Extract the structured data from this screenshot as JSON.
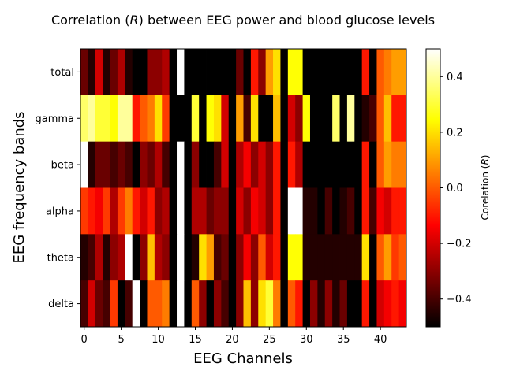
{
  "chart_data": {
    "type": "heatmap",
    "title": "Correlation ($R$) between EEG power and blood glucose levels",
    "title_prefix": "Correlation (",
    "title_var": "R",
    "title_suffix": ") between EEG power and blood glucose levels",
    "xlabel": "EEG Channels",
    "ylabel": "EEG frequency bands",
    "colorbar_label_prefix": "Corelation (",
    "colorbar_label_var": "R",
    "colorbar_label_suffix": ")",
    "colormap": "hot",
    "vmin": -0.5,
    "vmax": 0.5,
    "x_ticks": [
      0,
      5,
      10,
      15,
      20,
      25,
      30,
      35,
      40
    ],
    "x_tick_labels": [
      "0",
      "5",
      "10",
      "15",
      "20",
      "25",
      "30",
      "35",
      "40"
    ],
    "colorbar_ticks": [
      -0.4,
      -0.2,
      0.0,
      0.2,
      0.4
    ],
    "colorbar_tick_labels": [
      "−0.4",
      "−0.2",
      "0.0",
      "0.2",
      "0.4"
    ],
    "bands": [
      "total",
      "gamma",
      "beta",
      "alpha",
      "theta",
      "delta"
    ],
    "n_channels": 44,
    "values": [
      [
        -0.35,
        -0.45,
        -0.2,
        -0.45,
        -0.35,
        -0.25,
        -0.45,
        -0.5,
        -0.5,
        -0.3,
        -0.3,
        -0.25,
        -0.5,
        0.5,
        -0.5,
        -0.5,
        -0.5,
        -0.5,
        -0.5,
        -0.5,
        -0.5,
        -0.35,
        -0.5,
        -0.1,
        -0.3,
        0.1,
        0.2,
        -0.5,
        0.25,
        0.25,
        -0.5,
        -0.5,
        -0.5,
        -0.5,
        -0.5,
        -0.5,
        -0.5,
        -0.5,
        -0.1,
        -0.5,
        0.0,
        0.05,
        0.1,
        0.1
      ],
      [
        0.35,
        0.4,
        0.3,
        0.3,
        0.25,
        0.4,
        0.4,
        -0.1,
        0.0,
        0.05,
        0.2,
        -0.05,
        -0.5,
        -0.5,
        -0.5,
        0.3,
        -0.5,
        0.25,
        0.2,
        -0.2,
        -0.5,
        0.1,
        -0.4,
        0.2,
        -0.5,
        -0.5,
        0.15,
        -0.5,
        -0.2,
        -0.3,
        0.25,
        -0.5,
        -0.5,
        -0.5,
        0.35,
        -0.5,
        0.4,
        -0.5,
        -0.45,
        -0.4,
        0.0,
        0.15,
        -0.1,
        -0.1
      ],
      [
        0.5,
        -0.45,
        -0.35,
        -0.35,
        -0.4,
        -0.35,
        -0.4,
        -0.5,
        -0.3,
        -0.35,
        -0.25,
        -0.4,
        -0.5,
        0.5,
        -0.5,
        -0.3,
        -0.5,
        -0.5,
        -0.4,
        -0.2,
        -0.5,
        -0.25,
        -0.15,
        -0.3,
        -0.2,
        -0.3,
        -0.1,
        -0.5,
        -0.1,
        -0.25,
        -0.5,
        -0.5,
        -0.5,
        -0.5,
        -0.5,
        -0.5,
        -0.5,
        -0.5,
        -0.1,
        -0.5,
        0.0,
        0.1,
        0.05,
        0.05
      ],
      [
        -0.05,
        -0.1,
        -0.15,
        -0.05,
        -0.25,
        -0.05,
        0.05,
        -0.1,
        -0.2,
        -0.1,
        -0.3,
        -0.25,
        -0.5,
        0.5,
        -0.5,
        -0.25,
        -0.25,
        -0.35,
        -0.3,
        -0.3,
        -0.5,
        -0.2,
        -0.3,
        -0.15,
        -0.2,
        -0.3,
        -0.1,
        -0.5,
        0.5,
        0.5,
        -0.45,
        -0.45,
        -0.5,
        -0.4,
        -0.5,
        -0.45,
        -0.4,
        -0.5,
        -0.1,
        -0.4,
        -0.15,
        -0.2,
        -0.1,
        -0.1
      ],
      [
        -0.45,
        -0.4,
        -0.25,
        -0.45,
        -0.3,
        -0.25,
        0.5,
        -0.5,
        -0.3,
        0.15,
        -0.25,
        -0.3,
        -0.5,
        0.5,
        -0.5,
        -0.45,
        0.2,
        0.1,
        -0.4,
        -0.35,
        -0.5,
        -0.3,
        -0.15,
        -0.3,
        0.0,
        -0.2,
        -0.1,
        -0.5,
        0.25,
        0.25,
        -0.45,
        -0.45,
        -0.45,
        -0.45,
        -0.45,
        -0.45,
        -0.45,
        -0.45,
        0.2,
        -0.5,
        0.0,
        0.1,
        -0.05,
        0.0
      ],
      [
        -0.4,
        -0.2,
        -0.35,
        -0.4,
        -0.05,
        -0.5,
        -0.4,
        0.5,
        -0.5,
        0.0,
        0.0,
        0.05,
        -0.5,
        0.5,
        -0.5,
        0.0,
        -0.3,
        -0.5,
        -0.3,
        -0.4,
        -0.5,
        -0.3,
        0.15,
        -0.3,
        0.2,
        0.3,
        0.05,
        -0.5,
        0.0,
        -0.1,
        -0.5,
        -0.3,
        -0.45,
        -0.3,
        -0.45,
        -0.35,
        -0.5,
        -0.5,
        -0.1,
        -0.5,
        -0.2,
        -0.15,
        -0.1,
        -0.15
      ]
    ]
  }
}
